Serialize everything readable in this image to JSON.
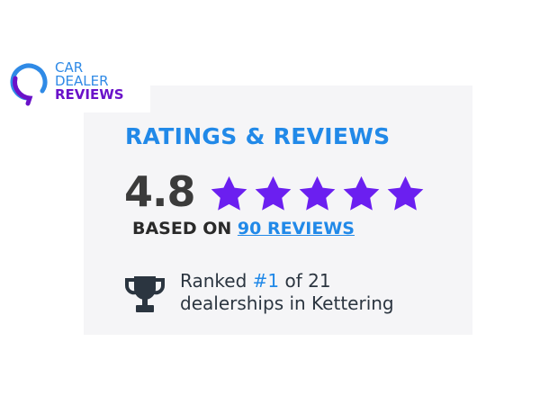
{
  "logo": {
    "line1": "CAR",
    "line2": "DEALER",
    "line3": "REVIEWS",
    "colors": {
      "blue": "#2f8ae6",
      "purple": "#6a12c9"
    }
  },
  "widget": {
    "title": "RATINGS & REVIEWS",
    "score": "4.8",
    "stars": {
      "filled": 5,
      "total": 5,
      "color": "#6b1ff0"
    },
    "based_on_label": "BASED ON",
    "reviews_link": "90 REVIEWS",
    "rank": {
      "prefix": "Ranked",
      "rank": "#1",
      "suffix": "of 21",
      "line2": "dealerships in Kettering",
      "icon": "trophy-icon"
    }
  }
}
